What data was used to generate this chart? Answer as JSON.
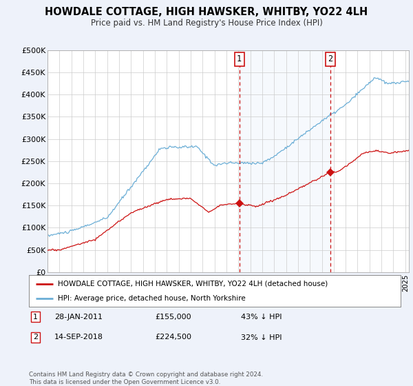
{
  "title": "HOWDALE COTTAGE, HIGH HAWSKER, WHITBY, YO22 4LH",
  "subtitle": "Price paid vs. HM Land Registry's House Price Index (HPI)",
  "hpi_color": "#6baed6",
  "property_color": "#cc1111",
  "vline_color": "#cc1111",
  "background_color": "#eef2fa",
  "plot_bg": "#ffffff",
  "ylim": [
    0,
    500000
  ],
  "yticks": [
    0,
    50000,
    100000,
    150000,
    200000,
    250000,
    300000,
    350000,
    400000,
    450000,
    500000
  ],
  "ytick_labels": [
    "£0",
    "£50K",
    "£100K",
    "£150K",
    "£200K",
    "£250K",
    "£300K",
    "£350K",
    "£400K",
    "£450K",
    "£500K"
  ],
  "sale1_x": 2011.08,
  "sale1_y": 155000,
  "sale2_x": 2018.72,
  "sale2_y": 224500,
  "legend_property": "HOWDALE COTTAGE, HIGH HAWSKER, WHITBY, YO22 4LH (detached house)",
  "legend_hpi": "HPI: Average price, detached house, North Yorkshire",
  "footer": "Contains HM Land Registry data © Crown copyright and database right 2024.\nThis data is licensed under the Open Government Licence v3.0.",
  "xlim_start": 1995.0,
  "xlim_end": 2025.3
}
